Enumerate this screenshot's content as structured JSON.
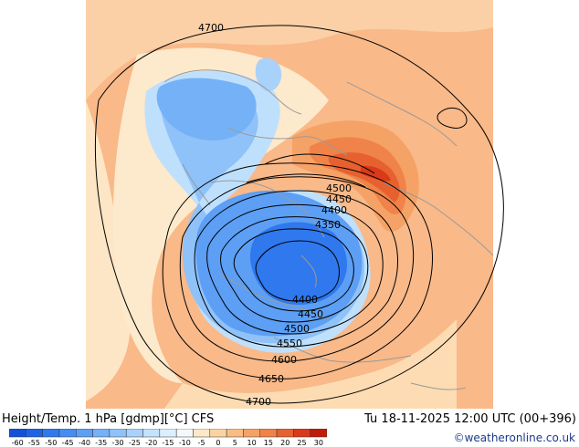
{
  "header": {
    "title": "Height/Temp. 1 hPa [gdmp][°C] CFS",
    "datetime": "Tu 18-11-2025 12:00 UTC (00+396)"
  },
  "footer": {
    "credit": "©weatheronline.co.uk"
  },
  "colorbar": {
    "values": [
      "-60",
      "-55",
      "-50",
      "-45",
      "-40",
      "-35",
      "-30",
      "-25",
      "-20",
      "-15",
      "-10",
      "-5",
      "0",
      "5",
      "10",
      "15",
      "20",
      "25",
      "30"
    ],
    "colors": [
      "#1450d8",
      "#1e63e6",
      "#2f78ee",
      "#468cf2",
      "#5c9ff5",
      "#75b1f7",
      "#8fc2f9",
      "#a9d2fb",
      "#c3e2fd",
      "#dceffe",
      "#f4f8fd",
      "#fde8c8",
      "#fbd3a2",
      "#f8bd83",
      "#f5a266",
      "#ef8349",
      "#e6612f",
      "#d93a19",
      "#c01a08"
    ]
  },
  "map": {
    "background_color": "#f9b989",
    "contour_labels": [
      {
        "id": "4700-top",
        "text": "4700"
      },
      {
        "id": "4500-upper",
        "text": "4500"
      },
      {
        "id": "4450-upper",
        "text": "4450"
      },
      {
        "id": "4400-upper",
        "text": "4400"
      },
      {
        "id": "4350",
        "text": "4350"
      },
      {
        "id": "4400-lower",
        "text": "4400"
      },
      {
        "id": "4450-lower",
        "text": "4450"
      },
      {
        "id": "4500-lower",
        "text": "4500"
      },
      {
        "id": "4550",
        "text": "4550"
      },
      {
        "id": "4600",
        "text": "4600"
      },
      {
        "id": "4650",
        "text": "4650"
      },
      {
        "id": "4700-bottom",
        "text": "4700"
      }
    ]
  }
}
